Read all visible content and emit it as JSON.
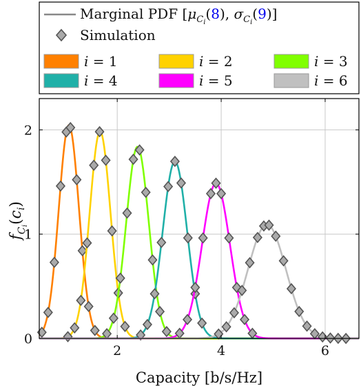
{
  "chart_data": {
    "type": "line",
    "xlabel": "Capacity [b/s/Hz]",
    "ylabel": "f_{C_i}(c_i)",
    "xlim": [
      0.5,
      6.65
    ],
    "ylim": [
      0,
      2.3
    ],
    "xticks": [
      2,
      4,
      6
    ],
    "yticks": [
      0,
      1,
      2
    ],
    "grid": true,
    "legend": {
      "placement": "top",
      "row1": {
        "label_prefix": "Marginal PDF [",
        "mu": "μ",
        "mu_sub": "C",
        "mu_subsub": "i",
        "mu_ref": "8",
        "sep": ", ",
        "sigma": "σ",
        "sigma_sub": "C",
        "sigma_subsub": "i",
        "sigma_ref": "9",
        "label_suffix": "]"
      },
      "row2": {
        "label": "Simulation"
      }
    },
    "series": [
      {
        "name": "i = 1",
        "idx": "1",
        "color": "#ff8000",
        "mu": 1.07,
        "sigma": 0.195,
        "sim_x": [
          0.55,
          0.67,
          0.79,
          0.91,
          1.02,
          1.1,
          1.22,
          1.33,
          1.45,
          1.57
        ]
      },
      {
        "name": "i = 2",
        "idx": "2",
        "color": "#ffd200",
        "mu": 1.67,
        "sigma": 0.201,
        "sim_x": [
          1.05,
          1.18,
          1.3,
          1.42,
          1.55,
          1.66,
          1.78,
          1.9,
          2.02,
          2.15
        ]
      },
      {
        "name": "i = 3",
        "idx": "3",
        "color": "#80ff00",
        "mu": 2.39,
        "sigma": 0.217,
        "sim_x": [
          1.8,
          1.93,
          2.06,
          2.19,
          2.31,
          2.43,
          2.55,
          2.68,
          2.82,
          2.95
        ]
      },
      {
        "name": "i = 4",
        "idx": "4",
        "color": "#20b0a8",
        "mu": 3.11,
        "sigma": 0.235,
        "sim_x": [
          2.45,
          2.58,
          2.72,
          2.85,
          2.98,
          3.11,
          3.23,
          3.36,
          3.5,
          3.63
        ]
      },
      {
        "name": "i = 5",
        "idx": "5",
        "color": "#ff00ff",
        "mu": 3.9,
        "sigma": 0.268,
        "sim_x": [
          3.2,
          3.35,
          3.5,
          3.65,
          3.8,
          3.9,
          4.0,
          4.15,
          4.3,
          4.45,
          4.6
        ]
      },
      {
        "name": "i = 6",
        "idx": "6",
        "color": "#c0c0c0",
        "mu": 4.88,
        "sigma": 0.365,
        "sim_x": [
          3.95,
          4.1,
          4.25,
          4.4,
          4.55,
          4.7,
          4.82,
          4.92,
          5.05,
          5.2,
          5.35,
          5.5,
          5.65,
          5.8,
          5.95,
          6.1,
          6.25,
          6.4
        ]
      }
    ],
    "simulation_marker": {
      "fill": "#aaaaaa",
      "stroke": "#555555"
    },
    "pdf_line_color": "#888888"
  }
}
